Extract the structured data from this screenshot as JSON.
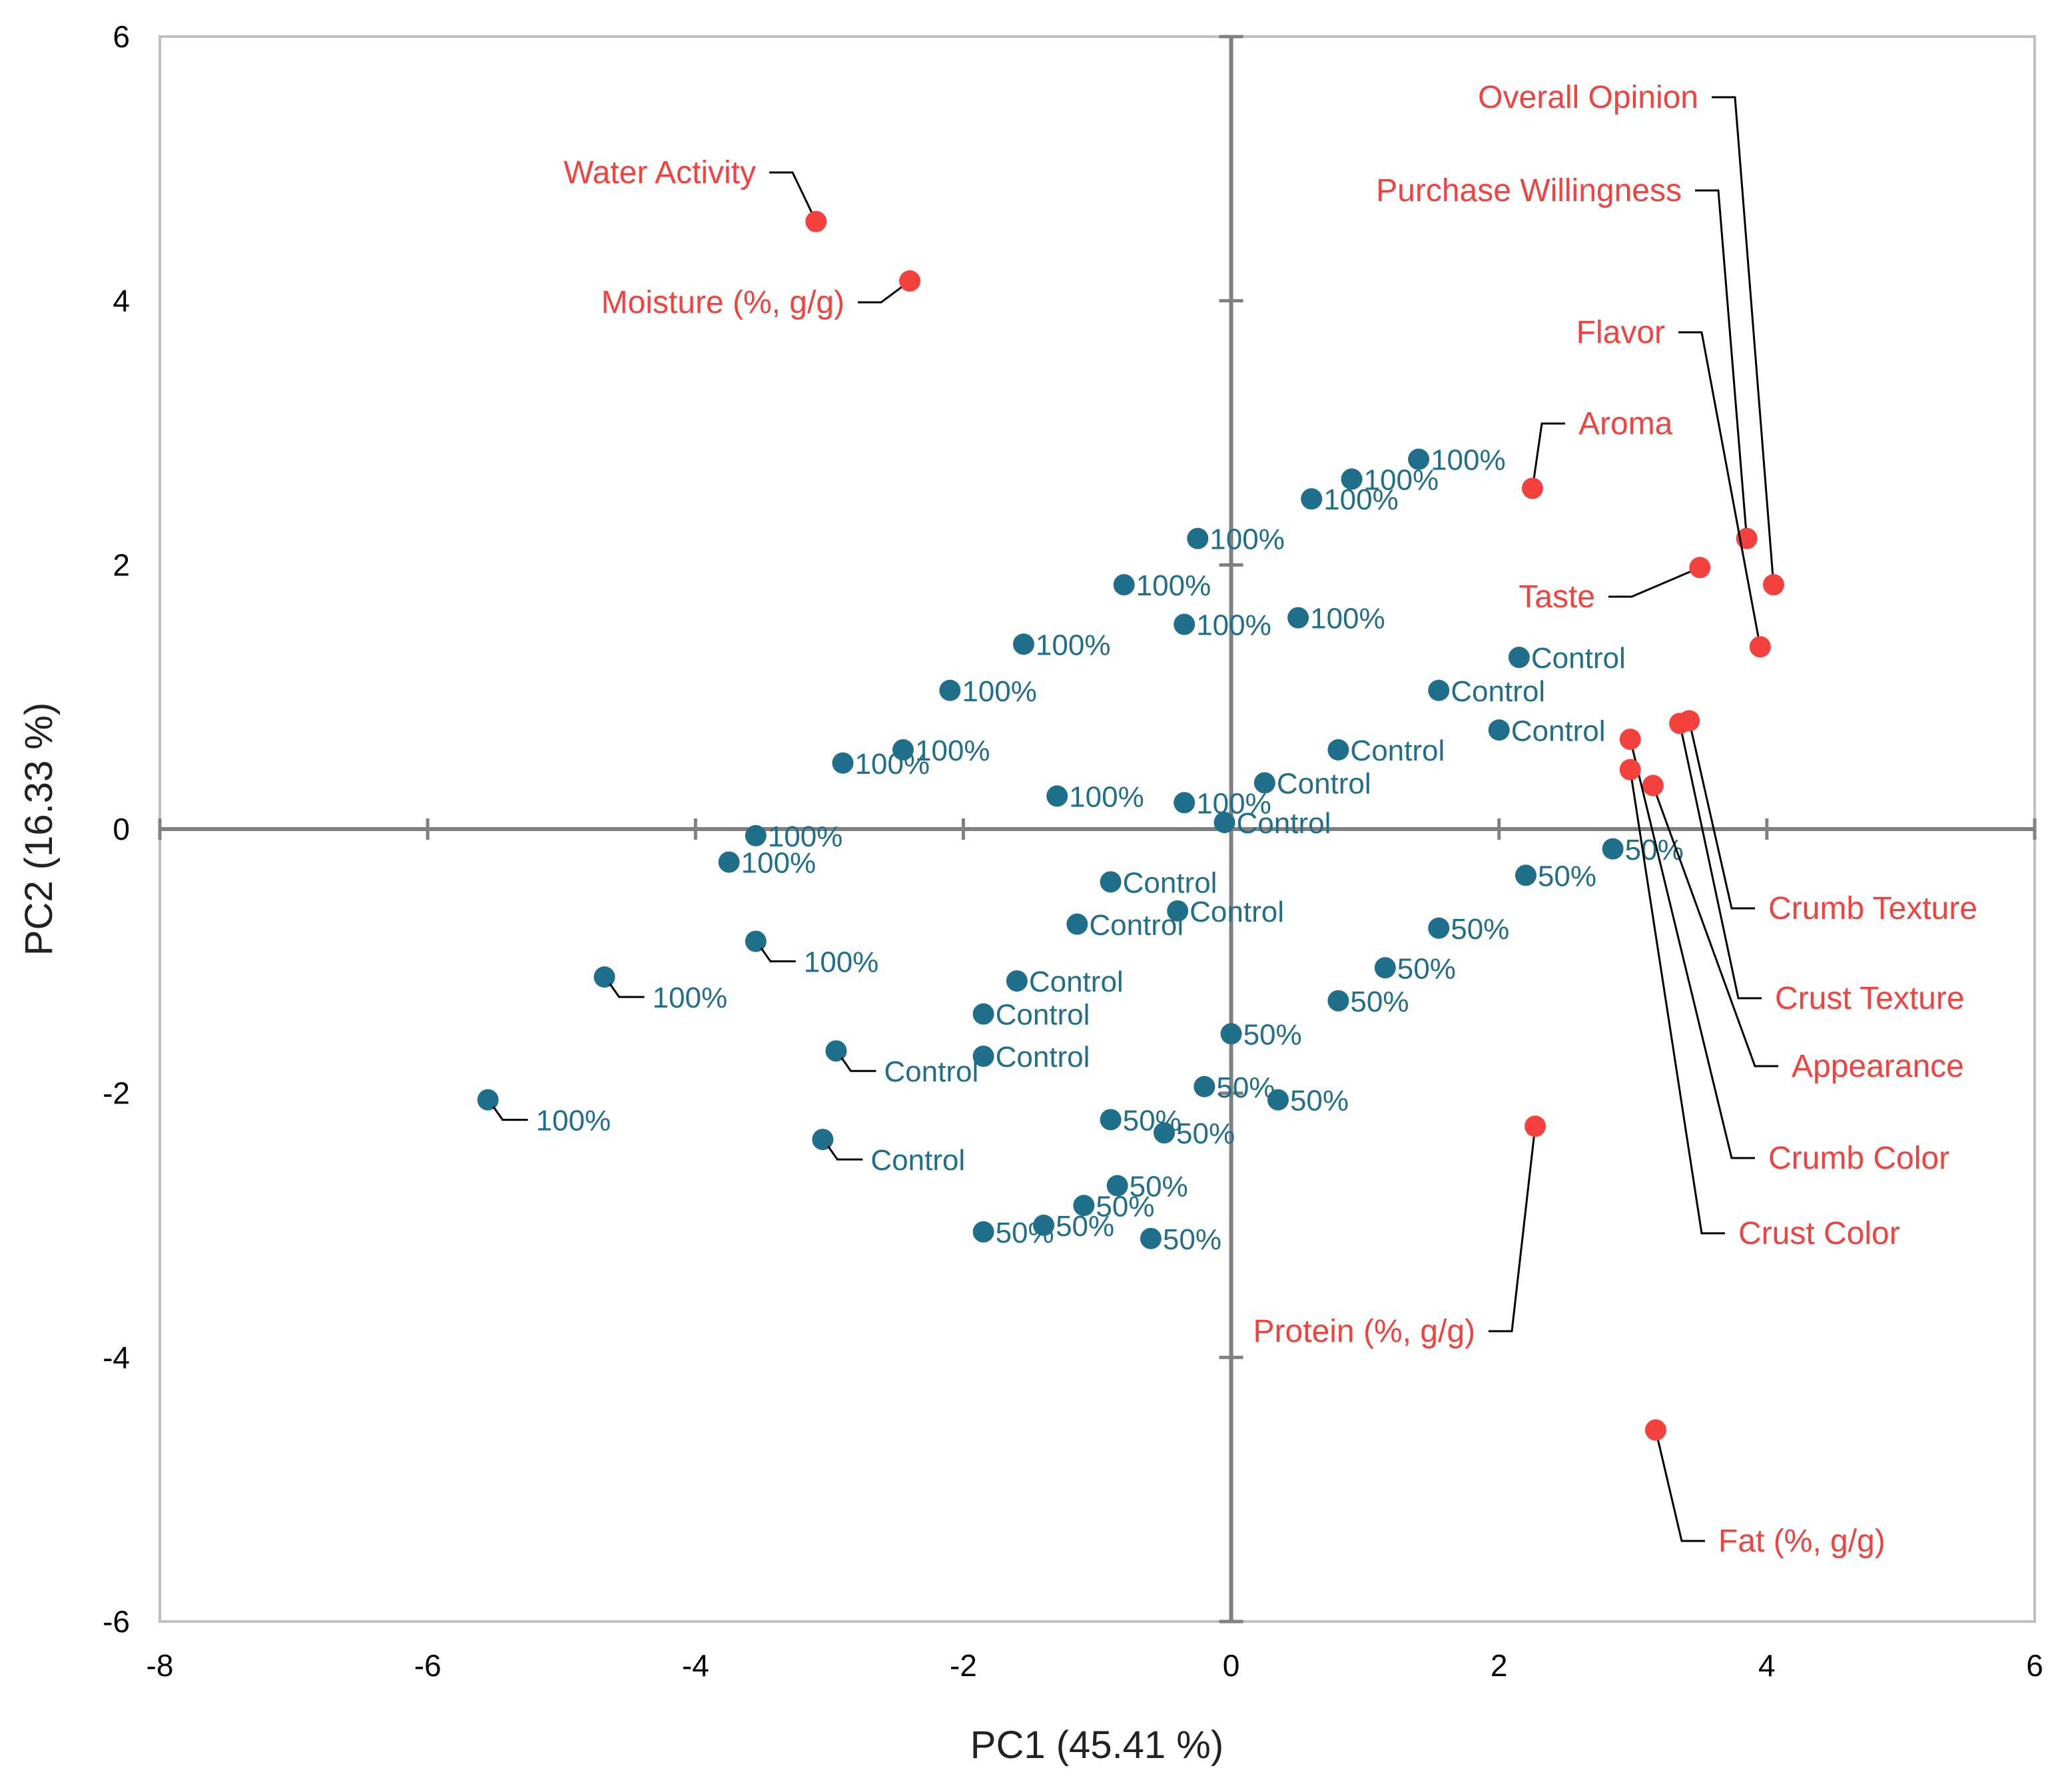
{
  "chart_data": {
    "type": "scatter",
    "title": "",
    "xlabel": "PC1 (45.41 %)",
    "ylabel": "PC2 (16.33 %)",
    "xlim": [
      -8,
      6
    ],
    "ylim": [
      -6,
      6
    ],
    "xticks": [
      "-8",
      "-6",
      "-4",
      "-2",
      "0",
      "2",
      "4",
      "6"
    ],
    "yticks": [
      "6",
      "4",
      "2",
      "0",
      "-2",
      "-4",
      "-6"
    ],
    "colors": {
      "samples": "#1f6f8b",
      "sample_label": "#1f6f8b",
      "variables": "#f5413d",
      "variable_label": "#f5413d",
      "zero_lines": "#808080",
      "frame": "#c0c0c0"
    },
    "variables": [
      {
        "name": "Water Activity",
        "x": -3.1,
        "y": 4.6
      },
      {
        "name": "Moisture (%, g/g)",
        "x": -2.4,
        "y": 4.15
      },
      {
        "name": "Overall Opinion",
        "x": 4.05,
        "y": 1.85
      },
      {
        "name": "Purchase Willingness",
        "x": 3.85,
        "y": 2.2
      },
      {
        "name": "Flavor",
        "x": 3.95,
        "y": 1.38
      },
      {
        "name": "Aroma",
        "x": 2.25,
        "y": 2.58
      },
      {
        "name": "Taste",
        "x": 3.5,
        "y": 1.98
      },
      {
        "name": "Crumb Texture",
        "x": 3.42,
        "y": 0.82
      },
      {
        "name": "Crust Texture",
        "x": 3.35,
        "y": 0.8
      },
      {
        "name": "Appearance",
        "x": 3.15,
        "y": 0.33
      },
      {
        "name": "Crumb Color",
        "x": 2.98,
        "y": 0.68
      },
      {
        "name": "Crust Color",
        "x": 2.98,
        "y": 0.45
      },
      {
        "name": "Protein (%, g/g)",
        "x": 2.27,
        "y": -2.25
      },
      {
        "name": "Fat (%, g/g)",
        "x": 3.17,
        "y": -4.55
      }
    ],
    "samples": [
      {
        "group": "100%",
        "label": "100%",
        "x": -5.55,
        "y": -2.05
      },
      {
        "group": "100%",
        "label": "100%",
        "x": -4.68,
        "y": -1.12
      },
      {
        "group": "100%",
        "label": "100%",
        "x": -3.55,
        "y": -0.85
      },
      {
        "group": "Control",
        "label": "Control",
        "x": -2.95,
        "y": -1.68
      },
      {
        "group": "Control",
        "label": "Control",
        "x": -3.05,
        "y": -2.35
      },
      {
        "group": "100%",
        "label": "100%",
        "x": 1.4,
        "y": 2.8
      },
      {
        "group": "100%",
        "label": "100%",
        "x": 0.9,
        "y": 2.65
      },
      {
        "group": "100%",
        "label": "100%",
        "x": 0.6,
        "y": 2.5
      },
      {
        "group": "100%",
        "label": "100%",
        "x": -0.25,
        "y": 2.2
      },
      {
        "group": "100%",
        "label": "100%",
        "x": -0.8,
        "y": 1.85
      },
      {
        "group": "100%",
        "label": "100%",
        "x": -1.55,
        "y": 1.4
      },
      {
        "group": "100%",
        "label": "100%",
        "x": -2.1,
        "y": 1.05
      },
      {
        "group": "100%",
        "label": "100%",
        "x": -2.45,
        "y": 0.6
      },
      {
        "group": "100%",
        "label": "100%",
        "x": -2.9,
        "y": 0.5
      },
      {
        "group": "100%",
        "label": "100%",
        "x": -3.55,
        "y": -0.05
      },
      {
        "group": "100%",
        "label": "100%",
        "x": -3.75,
        "y": -0.25
      },
      {
        "group": "100%",
        "label": "100%",
        "x": -1.3,
        "y": 0.25
      },
      {
        "group": "100%",
        "label": "100%",
        "x": -0.35,
        "y": 0.2
      },
      {
        "group": "100%",
        "label": "100%",
        "x": 0.5,
        "y": 1.6
      },
      {
        "group": "100%",
        "label": "100%",
        "x": -0.35,
        "y": 1.55
      },
      {
        "group": "Control",
        "label": "Control",
        "x": 2.15,
        "y": 1.3
      },
      {
        "group": "Control",
        "label": "Control",
        "x": 1.55,
        "y": 1.05
      },
      {
        "group": "Control",
        "label": "Control",
        "x": 0.8,
        "y": 0.6
      },
      {
        "group": "Control",
        "label": "Control",
        "x": 0.25,
        "y": 0.35
      },
      {
        "group": "Control",
        "label": "Control",
        "x": -0.05,
        "y": 0.05
      },
      {
        "group": "Control",
        "label": "Control",
        "x": -0.9,
        "y": -0.4
      },
      {
        "group": "Control",
        "label": "Control",
        "x": -1.15,
        "y": -0.72
      },
      {
        "group": "Control",
        "label": "Control",
        "x": -1.6,
        "y": -1.15
      },
      {
        "group": "Control",
        "label": "Control",
        "x": -1.85,
        "y": -1.4
      },
      {
        "group": "Control",
        "label": "Control",
        "x": -1.85,
        "y": -1.72
      },
      {
        "group": "Control",
        "label": "Control",
        "x": -0.4,
        "y": -0.62
      },
      {
        "group": "Control",
        "label": "Control",
        "x": 2.0,
        "y": 0.75
      },
      {
        "group": "50%",
        "label": "50%",
        "x": 2.85,
        "y": -0.15
      },
      {
        "group": "50%",
        "label": "50%",
        "x": 2.2,
        "y": -0.35
      },
      {
        "group": "50%",
        "label": "50%",
        "x": 1.55,
        "y": -0.75
      },
      {
        "group": "50%",
        "label": "50%",
        "x": 0.8,
        "y": -1.3
      },
      {
        "group": "50%",
        "label": "50%",
        "x": 0.35,
        "y": -2.05
      },
      {
        "group": "50%",
        "label": "50%",
        "x": 0.0,
        "y": -1.55
      },
      {
        "group": "50%",
        "label": "50%",
        "x": -0.2,
        "y": -1.95
      },
      {
        "group": "50%",
        "label": "50%",
        "x": -0.5,
        "y": -2.3
      },
      {
        "group": "50%",
        "label": "50%",
        "x": -0.9,
        "y": -2.2
      },
      {
        "group": "50%",
        "label": "50%",
        "x": -0.85,
        "y": -2.7
      },
      {
        "group": "50%",
        "label": "50%",
        "x": -1.1,
        "y": -2.85
      },
      {
        "group": "50%",
        "label": "50%",
        "x": -1.4,
        "y": -3.0
      },
      {
        "group": "50%",
        "label": "50%",
        "x": -1.85,
        "y": -3.05
      },
      {
        "group": "50%",
        "label": "50%",
        "x": -0.6,
        "y": -3.1
      },
      {
        "group": "50%",
        "label": "50%",
        "x": 1.15,
        "y": -1.05
      }
    ]
  }
}
